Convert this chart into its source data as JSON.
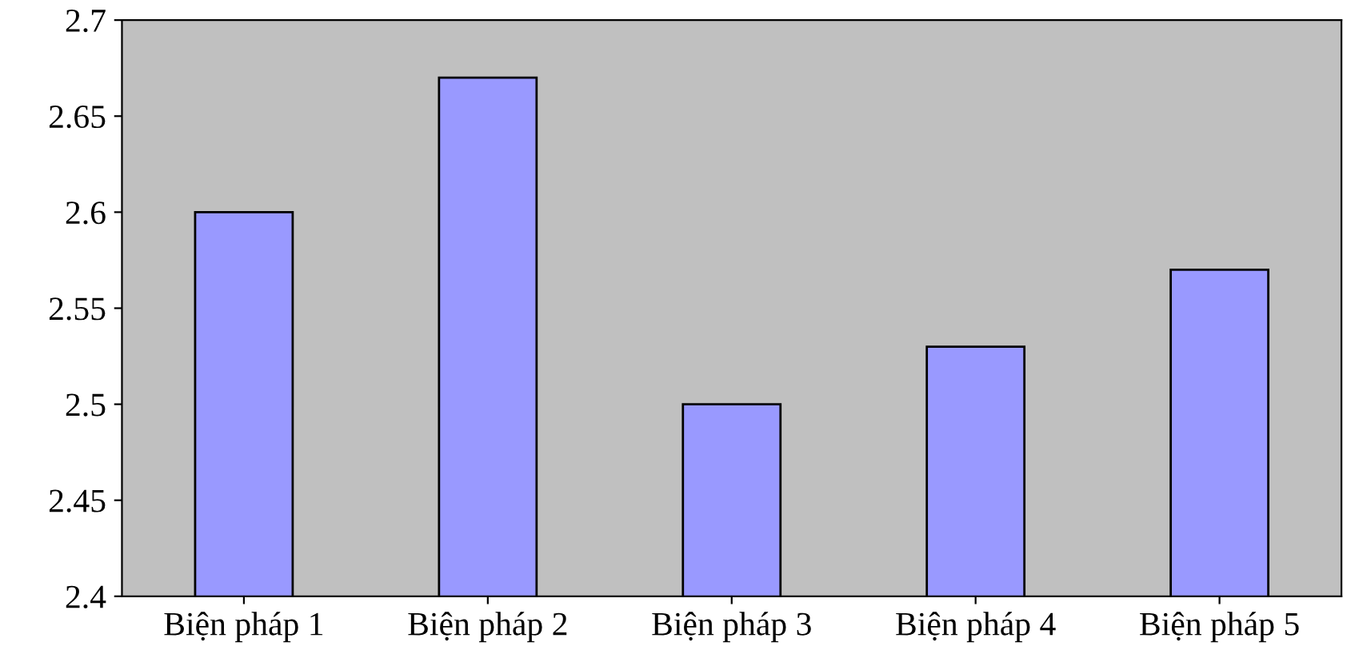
{
  "chart_data": {
    "type": "bar",
    "categories": [
      "Biện pháp 1",
      "Biện pháp 2",
      "Biện pháp 3",
      "Biện pháp 4",
      "Biện pháp 5"
    ],
    "values": [
      2.6,
      2.67,
      2.5,
      2.53,
      2.57
    ],
    "color": "#9999ff",
    "ylim": [
      2.4,
      2.7
    ],
    "yticks": [
      2.4,
      2.45,
      2.5,
      2.55,
      2.6,
      2.65,
      2.7
    ],
    "grid": false,
    "legend": false
  }
}
